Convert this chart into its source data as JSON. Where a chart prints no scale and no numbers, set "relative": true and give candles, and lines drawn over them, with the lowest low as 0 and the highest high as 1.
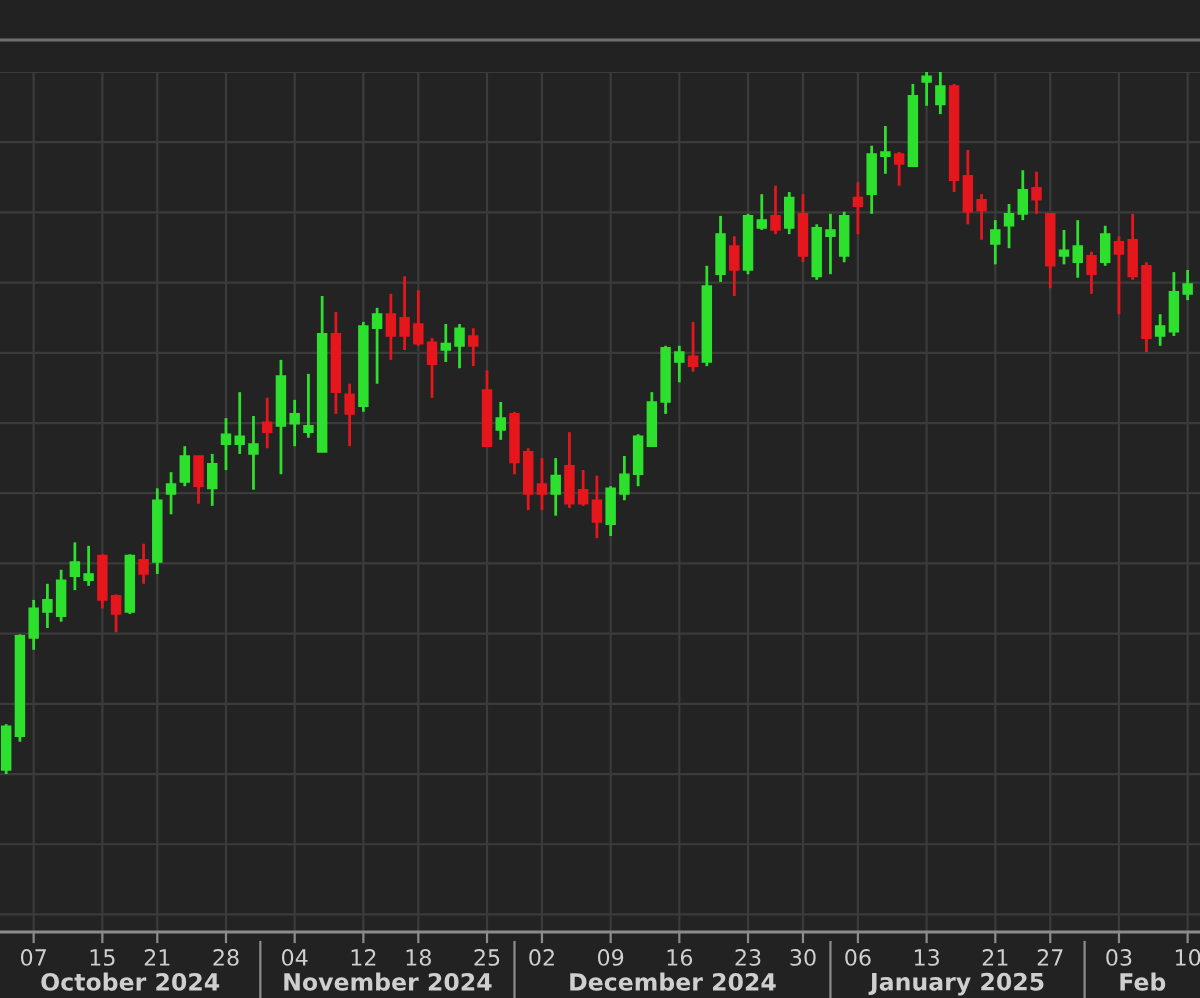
{
  "chart_data": {
    "type": "candlestick",
    "relative": true,
    "grid": true,
    "categories": [
      null,
      null,
      "07",
      null,
      null,
      null,
      null,
      "15",
      null,
      null,
      null,
      "21",
      null,
      null,
      null,
      null,
      "28",
      null,
      null,
      null,
      null,
      "04",
      null,
      null,
      null,
      null,
      "12",
      null,
      null,
      null,
      "18",
      null,
      null,
      null,
      null,
      "25",
      null,
      null,
      null,
      "02",
      null,
      null,
      null,
      null,
      "09",
      null,
      null,
      null,
      null,
      "16",
      null,
      null,
      null,
      null,
      "23",
      null,
      null,
      null,
      "30",
      null,
      null,
      null,
      "06",
      null,
      null,
      null,
      null,
      "13",
      null,
      null,
      null,
      null,
      "21",
      null,
      null,
      null,
      "27",
      null,
      null,
      null,
      null,
      "03",
      null,
      null,
      null,
      null,
      "10"
    ],
    "ohlc": [
      [
        0.006,
        0.071,
        0,
        0.068
      ],
      [
        0.054,
        0.199,
        0.046,
        0.197
      ],
      [
        0.194,
        0.248,
        0.177,
        0.236
      ],
      [
        0.231,
        0.271,
        0.208,
        0.248
      ],
      [
        0.225,
        0.291,
        0.217,
        0.276
      ],
      [
        0.282,
        0.33,
        0.262,
        0.302
      ],
      [
        0.276,
        0.325,
        0.268,
        0.285
      ],
      [
        0.311,
        0.313,
        0.236,
        0.248
      ],
      [
        0.254,
        0.256,
        0.202,
        0.228
      ],
      [
        0.231,
        0.313,
        0.228,
        0.311
      ],
      [
        0.305,
        0.328,
        0.271,
        0.285
      ],
      [
        0.302,
        0.407,
        0.285,
        0.39
      ],
      [
        0.399,
        0.43,
        0.37,
        0.413
      ],
      [
        0.416,
        0.467,
        0.41,
        0.453
      ],
      [
        0.453,
        0.453,
        0.385,
        0.41
      ],
      [
        0.407,
        0.456,
        0.382,
        0.442
      ],
      [
        0.47,
        0.507,
        0.433,
        0.484
      ],
      [
        0.47,
        0.544,
        0.456,
        0.481
      ],
      [
        0.456,
        0.51,
        0.405,
        0.47
      ],
      [
        0.501,
        0.536,
        0.464,
        0.487
      ],
      [
        0.496,
        0.59,
        0.427,
        0.567
      ],
      [
        0.499,
        0.533,
        0.467,
        0.513
      ],
      [
        0.487,
        0.57,
        0.479,
        0.496
      ],
      [
        0.459,
        0.681,
        0.459,
        0.627
      ],
      [
        0.627,
        0.658,
        0.513,
        0.544
      ],
      [
        0.541,
        0.556,
        0.467,
        0.513
      ],
      [
        0.524,
        0.644,
        0.516,
        0.638
      ],
      [
        0.635,
        0.664,
        0.556,
        0.655
      ],
      [
        0.655,
        0.684,
        0.59,
        0.624
      ],
      [
        0.65,
        0.709,
        0.604,
        0.624
      ],
      [
        0.641,
        0.689,
        0.61,
        0.613
      ],
      [
        0.615,
        0.621,
        0.536,
        0.584
      ],
      [
        0.604,
        0.641,
        0.587,
        0.613
      ],
      [
        0.61,
        0.641,
        0.578,
        0.635
      ],
      [
        0.624,
        0.635,
        0.581,
        0.61
      ],
      [
        0.547,
        0.575,
        0.467,
        0.467
      ],
      [
        0.49,
        0.53,
        0.476,
        0.507
      ],
      [
        0.513,
        0.516,
        0.427,
        0.444
      ],
      [
        0.459,
        0.464,
        0.376,
        0.399
      ],
      [
        0.413,
        0.45,
        0.376,
        0.399
      ],
      [
        0.399,
        0.45,
        0.368,
        0.425
      ],
      [
        0.439,
        0.487,
        0.379,
        0.385
      ],
      [
        0.405,
        0.433,
        0.382,
        0.385
      ],
      [
        0.39,
        0.425,
        0.336,
        0.359
      ],
      [
        0.356,
        0.41,
        0.339,
        0.407
      ],
      [
        0.399,
        0.453,
        0.39,
        0.427
      ],
      [
        0.427,
        0.484,
        0.41,
        0.481
      ],
      [
        0.467,
        0.544,
        0.467,
        0.53
      ],
      [
        0.53,
        0.61,
        0.513,
        0.607
      ],
      [
        0.587,
        0.61,
        0.558,
        0.601
      ],
      [
        0.595,
        0.644,
        0.573,
        0.581
      ],
      [
        0.587,
        0.724,
        0.581,
        0.695
      ],
      [
        0.712,
        0.795,
        0.701,
        0.769
      ],
      [
        0.752,
        0.766,
        0.681,
        0.718
      ],
      [
        0.718,
        0.798,
        0.712,
        0.795
      ],
      [
        0.778,
        0.826,
        0.775,
        0.789
      ],
      [
        0.795,
        0.838,
        0.769,
        0.775
      ],
      [
        0.778,
        0.829,
        0.769,
        0.821
      ],
      [
        0.798,
        0.826,
        0.729,
        0.738
      ],
      [
        0.709,
        0.783,
        0.704,
        0.778
      ],
      [
        0.766,
        0.798,
        0.712,
        0.775
      ],
      [
        0.738,
        0.801,
        0.729,
        0.795
      ],
      [
        0.821,
        0.843,
        0.769,
        0.809
      ],
      [
        0.826,
        0.895,
        0.798,
        0.883
      ],
      [
        0.88,
        0.923,
        0.855,
        0.886
      ],
      [
        0.883,
        0.886,
        0.838,
        0.869
      ],
      [
        0.866,
        0.983,
        0.866,
        0.966
      ],
      [
        0.986,
        1,
        0.952,
        0.994
      ],
      [
        0.954,
        1,
        0.94,
        0.98
      ],
      [
        0.98,
        0.983,
        0.829,
        0.846
      ],
      [
        0.852,
        0.889,
        0.783,
        0.801
      ],
      [
        0.818,
        0.826,
        0.761,
        0.803
      ],
      [
        0.755,
        0.789,
        0.726,
        0.775
      ],
      [
        0.781,
        0.812,
        0.749,
        0.798
      ],
      [
        0.798,
        0.86,
        0.789,
        0.832
      ],
      [
        0.835,
        0.858,
        0.798,
        0.818
      ],
      [
        0.798,
        0.798,
        0.692,
        0.724
      ],
      [
        0.738,
        0.775,
        0.726,
        0.746
      ],
      [
        0.729,
        0.789,
        0.707,
        0.752
      ],
      [
        0.738,
        0.744,
        0.684,
        0.712
      ],
      [
        0.729,
        0.781,
        0.724,
        0.769
      ],
      [
        0.758,
        0.766,
        0.655,
        0.741
      ],
      [
        0.761,
        0.798,
        0.704,
        0.709
      ],
      [
        0.724,
        0.729,
        0.601,
        0.621
      ],
      [
        0.624,
        0.655,
        0.61,
        0.638
      ],
      [
        0.63,
        0.715,
        0.624,
        0.687
      ],
      [
        0.684,
        0.718,
        0.675,
        0.698
      ]
    ],
    "colors": [
      "#2ee02e",
      "#2ee02e",
      "#2ee02e",
      "#2ee02e",
      "#2ee02e",
      "#2ee02e",
      "#2ee02e",
      "#e5171d",
      "#e5171d",
      "#2ee02e",
      "#e5171d",
      "#2ee02e",
      "#2ee02e",
      "#2ee02e",
      "#e5171d",
      "#2ee02e",
      "#2ee02e",
      "#2ee02e",
      "#2ee02e",
      "#e5171d",
      "#2ee02e",
      "#2ee02e",
      "#2ee02e",
      "#2ee02e",
      "#e5171d",
      "#e5171d",
      "#2ee02e",
      "#2ee02e",
      "#e5171d",
      "#e5171d",
      "#e5171d",
      "#e5171d",
      "#2ee02e",
      "#2ee02e",
      "#e5171d",
      "#e5171d",
      "#2ee02e",
      "#e5171d",
      "#e5171d",
      "#e5171d",
      "#2ee02e",
      "#e5171d",
      "#e5171d",
      "#e5171d",
      "#2ee02e",
      "#2ee02e",
      "#2ee02e",
      "#2ee02e",
      "#2ee02e",
      "#2ee02e",
      "#e5171d",
      "#2ee02e",
      "#2ee02e",
      "#e5171d",
      "#2ee02e",
      "#2ee02e",
      "#e5171d",
      "#2ee02e",
      "#e5171d",
      "#2ee02e",
      "#2ee02e",
      "#2ee02e",
      "#e5171d",
      "#2ee02e",
      "#2ee02e",
      "#e5171d",
      "#2ee02e",
      "#2ee02e",
      "#2ee02e",
      "#e5171d",
      "#e5171d",
      "#e5171d",
      "#2ee02e",
      "#2ee02e",
      "#2ee02e",
      "#e5171d",
      "#e5171d",
      "#2ee02e",
      "#2ee02e",
      "#e5171d",
      "#2ee02e",
      "#e5171d",
      "#e5171d",
      "#e5171d",
      "#2ee02e",
      "#2ee02e",
      "#2ee02e"
    ],
    "annotations": [
      "October 2024",
      "November 2024",
      "December 2024",
      "January 2025",
      "Feb"
    ]
  }
}
